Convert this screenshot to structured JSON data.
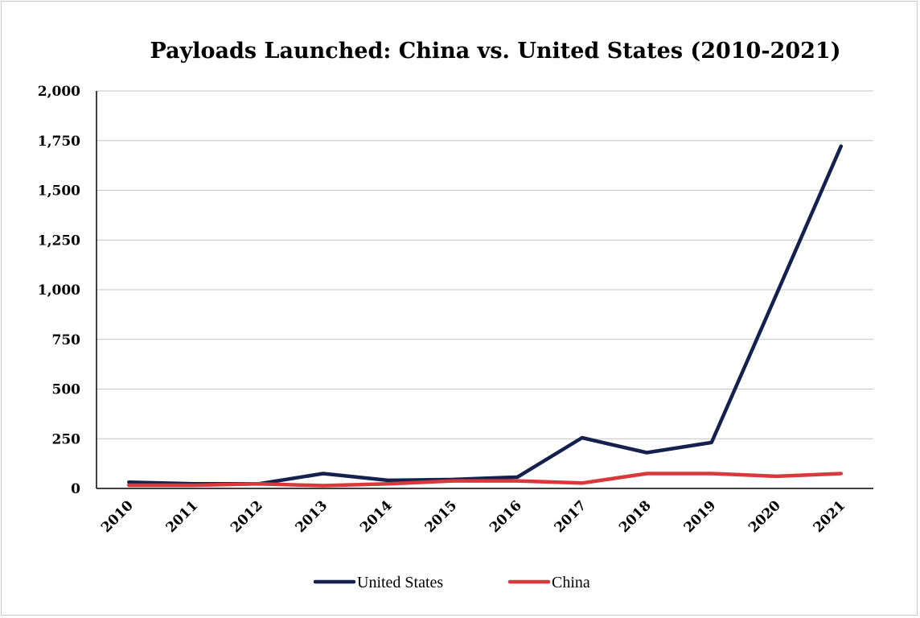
{
  "chart_data": {
    "type": "line",
    "title": "Payloads Launched: China vs. United States (2010-2021)",
    "xlabel": "",
    "ylabel": "",
    "categories": [
      "2010",
      "2011",
      "2012",
      "2013",
      "2014",
      "2015",
      "2016",
      "2017",
      "2018",
      "2019",
      "2020",
      "2021"
    ],
    "ylim": [
      0,
      2000
    ],
    "yticks": [
      "0",
      "250",
      "500",
      "750",
      "1,000",
      "1,250",
      "1,500",
      "1,750",
      "2,000"
    ],
    "ytick_values": [
      0,
      250,
      500,
      750,
      1000,
      1250,
      1500,
      1750,
      2000
    ],
    "grid": true,
    "legend_position": "bottom",
    "series": [
      {
        "name": "United States",
        "color": "#14214f",
        "values": [
          31,
          23,
          23,
          75,
          41,
          45,
          57,
          255,
          180,
          231,
          975,
          1722
        ]
      },
      {
        "name": "China",
        "color": "#d9393b",
        "values": [
          16,
          16,
          23,
          14,
          23,
          38,
          38,
          27,
          75,
          75,
          61,
          75
        ]
      }
    ]
  }
}
